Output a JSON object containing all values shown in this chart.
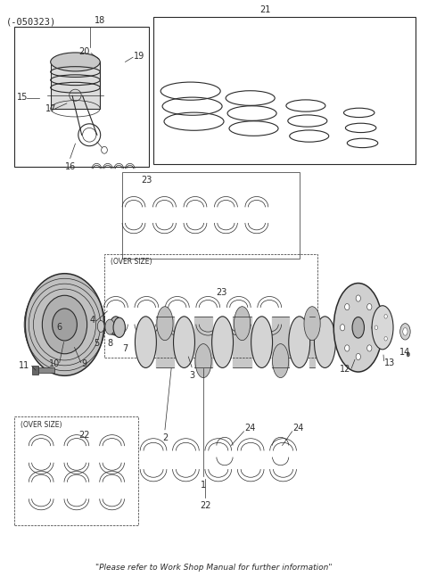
{
  "title": "(-050323)",
  "footer": "\"Please refer to Work Shop Manual for further information\"",
  "bg_color": "#ffffff",
  "line_color": "#2a2a2a",
  "fig_width": 4.8,
  "fig_height": 6.56,
  "dpi": 100
}
